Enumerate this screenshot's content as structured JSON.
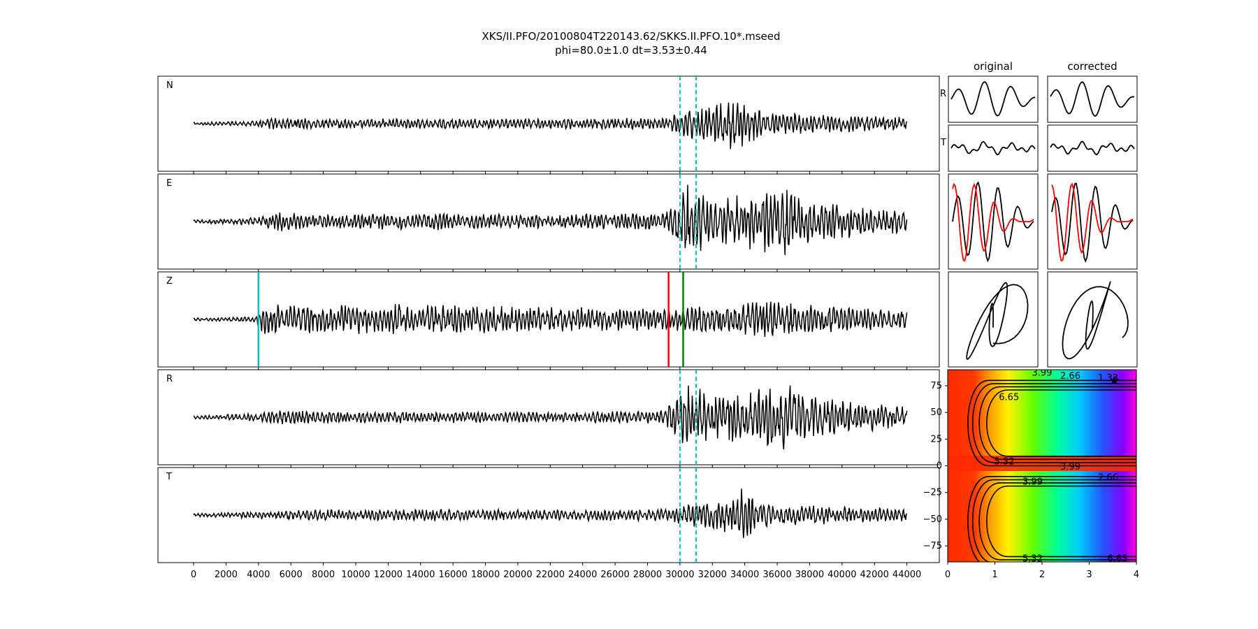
{
  "figure": {
    "title_line1": "XKS/II.PFO/20100804T220143.62/SKKS.II.PFO.10*.mseed",
    "title_line2": "phi=80.0±1.0 dt=3.53±0.44"
  },
  "chart_data": [
    {
      "type": "line",
      "description_role": "seismogram traces (time samples on x)",
      "xlim": [
        -2200,
        46000
      ],
      "xticks": [
        0,
        2000,
        4000,
        6000,
        8000,
        10000,
        12000,
        14000,
        16000,
        18000,
        20000,
        22000,
        24000,
        26000,
        28000,
        30000,
        32000,
        34000,
        36000,
        38000,
        40000,
        42000,
        44000
      ],
      "traces": [
        {
          "label": "N",
          "markers": [
            {
              "x": 30000,
              "color": "#00bfbf",
              "style": "dashed"
            },
            {
              "x": 31000,
              "color": "#00bfbf",
              "style": "dashed"
            }
          ],
          "envelope": [
            [
              0,
              0.03
            ],
            [
              3500,
              0.05
            ],
            [
              5000,
              0.12
            ],
            [
              8000,
              0.09
            ],
            [
              14000,
              0.1
            ],
            [
              22000,
              0.1
            ],
            [
              29000,
              0.12
            ],
            [
              30500,
              0.3
            ],
            [
              32000,
              0.35
            ],
            [
              33500,
              0.55
            ],
            [
              35000,
              0.25
            ],
            [
              38000,
              0.2
            ],
            [
              44000,
              0.12
            ]
          ]
        },
        {
          "label": "E",
          "markers": [
            {
              "x": 30000,
              "color": "#00bfbf",
              "style": "dashed"
            },
            {
              "x": 31000,
              "color": "#00bfbf",
              "style": "dashed"
            }
          ],
          "envelope": [
            [
              0,
              0.03
            ],
            [
              4000,
              0.08
            ],
            [
              5200,
              0.22
            ],
            [
              7000,
              0.14
            ],
            [
              14500,
              0.17
            ],
            [
              22000,
              0.13
            ],
            [
              29000,
              0.18
            ],
            [
              30400,
              0.75
            ],
            [
              32000,
              0.45
            ],
            [
              34500,
              0.55
            ],
            [
              36400,
              0.72
            ],
            [
              38500,
              0.4
            ],
            [
              44000,
              0.2
            ]
          ]
        },
        {
          "label": "Z",
          "markers": [
            {
              "x": 4000,
              "color": "#00bfbf",
              "style": "solid"
            },
            {
              "x": 29300,
              "color": "#ff0000",
              "style": "solid"
            },
            {
              "x": 30200,
              "color": "#008000",
              "style": "solid"
            }
          ],
          "envelope": [
            [
              0,
              0.03
            ],
            [
              3800,
              0.05
            ],
            [
              4400,
              0.35
            ],
            [
              6000,
              0.28
            ],
            [
              14500,
              0.3
            ],
            [
              22000,
              0.24
            ],
            [
              29500,
              0.22
            ],
            [
              31000,
              0.25
            ],
            [
              35500,
              0.35
            ],
            [
              38000,
              0.3
            ],
            [
              44000,
              0.18
            ]
          ]
        },
        {
          "label": "R",
          "markers": [
            {
              "x": 30000,
              "color": "#00bfbf",
              "style": "dashed"
            },
            {
              "x": 31000,
              "color": "#00bfbf",
              "style": "dashed"
            }
          ],
          "envelope": [
            [
              0,
              0.03
            ],
            [
              4000,
              0.08
            ],
            [
              5300,
              0.18
            ],
            [
              7000,
              0.12
            ],
            [
              14500,
              0.12
            ],
            [
              22000,
              0.1
            ],
            [
              29000,
              0.14
            ],
            [
              30400,
              0.68
            ],
            [
              32000,
              0.45
            ],
            [
              34500,
              0.5
            ],
            [
              36300,
              0.7
            ],
            [
              38500,
              0.4
            ],
            [
              44000,
              0.2
            ]
          ]
        },
        {
          "label": "T",
          "markers": [
            {
              "x": 30000,
              "color": "#00bfbf",
              "style": "dashed"
            },
            {
              "x": 31000,
              "color": "#00bfbf",
              "style": "dashed"
            }
          ],
          "envelope": [
            [
              0,
              0.03
            ],
            [
              4000,
              0.07
            ],
            [
              6000,
              0.1
            ],
            [
              14500,
              0.12
            ],
            [
              22000,
              0.1
            ],
            [
              29000,
              0.12
            ],
            [
              30800,
              0.22
            ],
            [
              32500,
              0.35
            ],
            [
              33800,
              0.55
            ],
            [
              35000,
              0.25
            ],
            [
              38000,
              0.2
            ],
            [
              44000,
              0.12
            ]
          ]
        }
      ]
    },
    {
      "type": "line",
      "description_role": "particle motion and component comparison panels",
      "columns": [
        "original",
        "corrected"
      ],
      "rows": [
        {
          "label": "R"
        },
        {
          "label": "T"
        },
        {
          "label": ""
        },
        {
          "label": ""
        }
      ],
      "overlay_colors": [
        "#000000",
        "#ff0000"
      ]
    },
    {
      "type": "heatmap",
      "description_role": "splitting parameter grid search (dt on x, phi on y)",
      "xlim": [
        0,
        4
      ],
      "ylim": [
        -90,
        90
      ],
      "xticks": [
        0,
        1,
        2,
        3,
        4
      ],
      "yticks": [
        -75,
        -50,
        -25,
        0,
        25,
        50,
        75
      ],
      "minima": [
        {
          "x": 3.53,
          "y": 80.0
        }
      ],
      "colormap": "hsv-reversed",
      "contour_labels": [
        {
          "text": "3.99",
          "x": 2.0,
          "y": 87
        },
        {
          "text": "2.66",
          "x": 2.6,
          "y": 84
        },
        {
          "text": "1.33",
          "x": 3.4,
          "y": 82
        },
        {
          "text": "6.65",
          "x": 1.3,
          "y": 64
        },
        {
          "text": "5.32",
          "x": 1.2,
          "y": 4
        },
        {
          "text": "3.99",
          "x": 2.6,
          "y": -1
        },
        {
          "text": "2.66",
          "x": 3.4,
          "y": -11
        },
        {
          "text": "3.99",
          "x": 1.8,
          "y": -15
        },
        {
          "text": "5.32",
          "x": 1.8,
          "y": -87
        },
        {
          "text": "6.65",
          "x": 3.6,
          "y": -87
        }
      ]
    }
  ]
}
